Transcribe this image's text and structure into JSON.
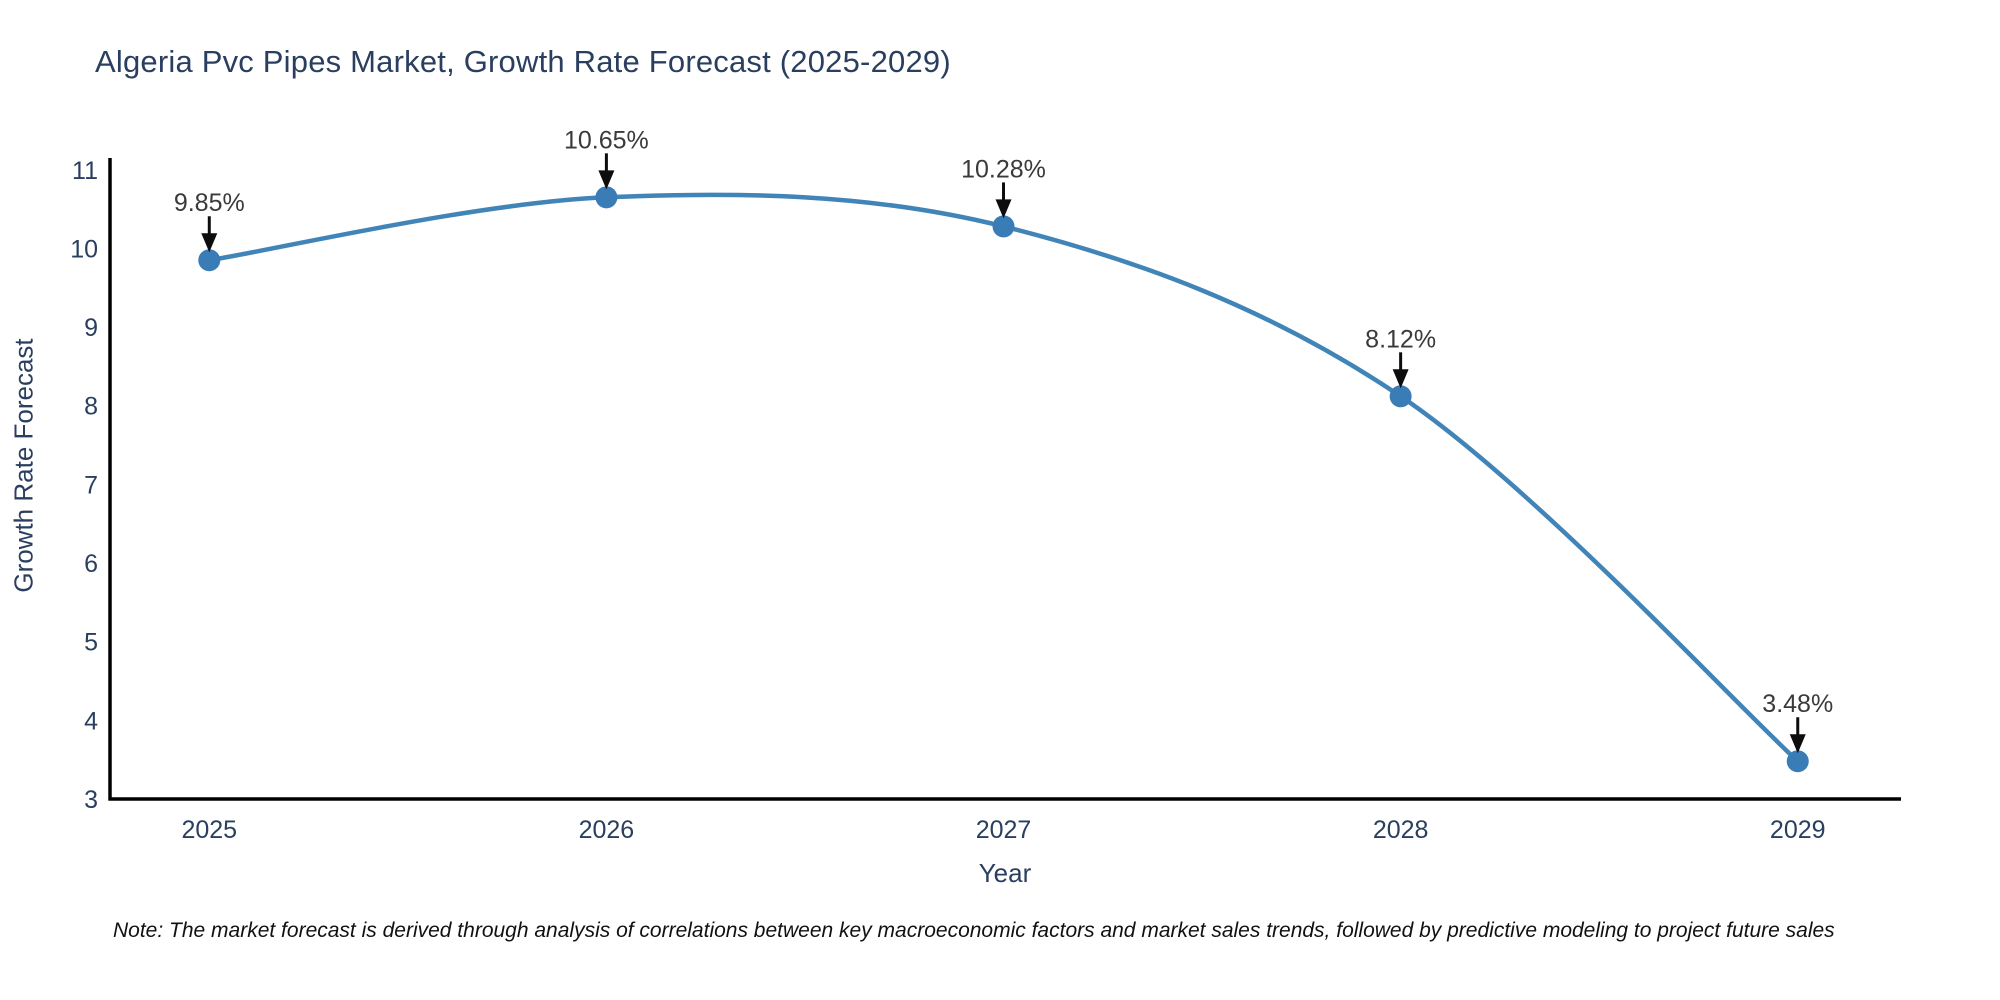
{
  "chart_data": {
    "type": "line",
    "title": "Algeria Pvc Pipes Market, Growth Rate Forecast (2025-2029)",
    "xlabel": "Year",
    "ylabel": "Growth Rate Forecast",
    "x": [
      2025,
      2026,
      2027,
      2028,
      2029
    ],
    "series": [
      {
        "name": "Growth Rate Forecast",
        "values": [
          9.85,
          10.65,
          10.28,
          8.12,
          3.48
        ],
        "point_labels": [
          "9.85%",
          "10.65%",
          "10.28%",
          "8.12%",
          "3.48%"
        ]
      }
    ],
    "x_tick_labels": [
      "2025",
      "2026",
      "2027",
      "2028",
      "2029"
    ],
    "y_ticks": [
      3,
      4,
      5,
      6,
      7,
      8,
      9,
      10,
      11
    ],
    "xlim": [
      2024.75,
      2029.26
    ],
    "ylim": [
      3,
      11.15
    ],
    "line_shape": "spline",
    "grid": false,
    "legend_position": "none",
    "colors": {
      "line": "#4184b8",
      "marker": "#3a7cb5",
      "axis": "#000000",
      "axis_text": "#2a3f5f",
      "annotation_text": "#3a3a3a",
      "arrow": "#0d0d0d",
      "background": "#ffffff"
    },
    "note": "Note: The market forecast is derived through analysis of correlations between key macroeconomic factors and market sales trends, followed by predictive modeling to project future sales"
  }
}
